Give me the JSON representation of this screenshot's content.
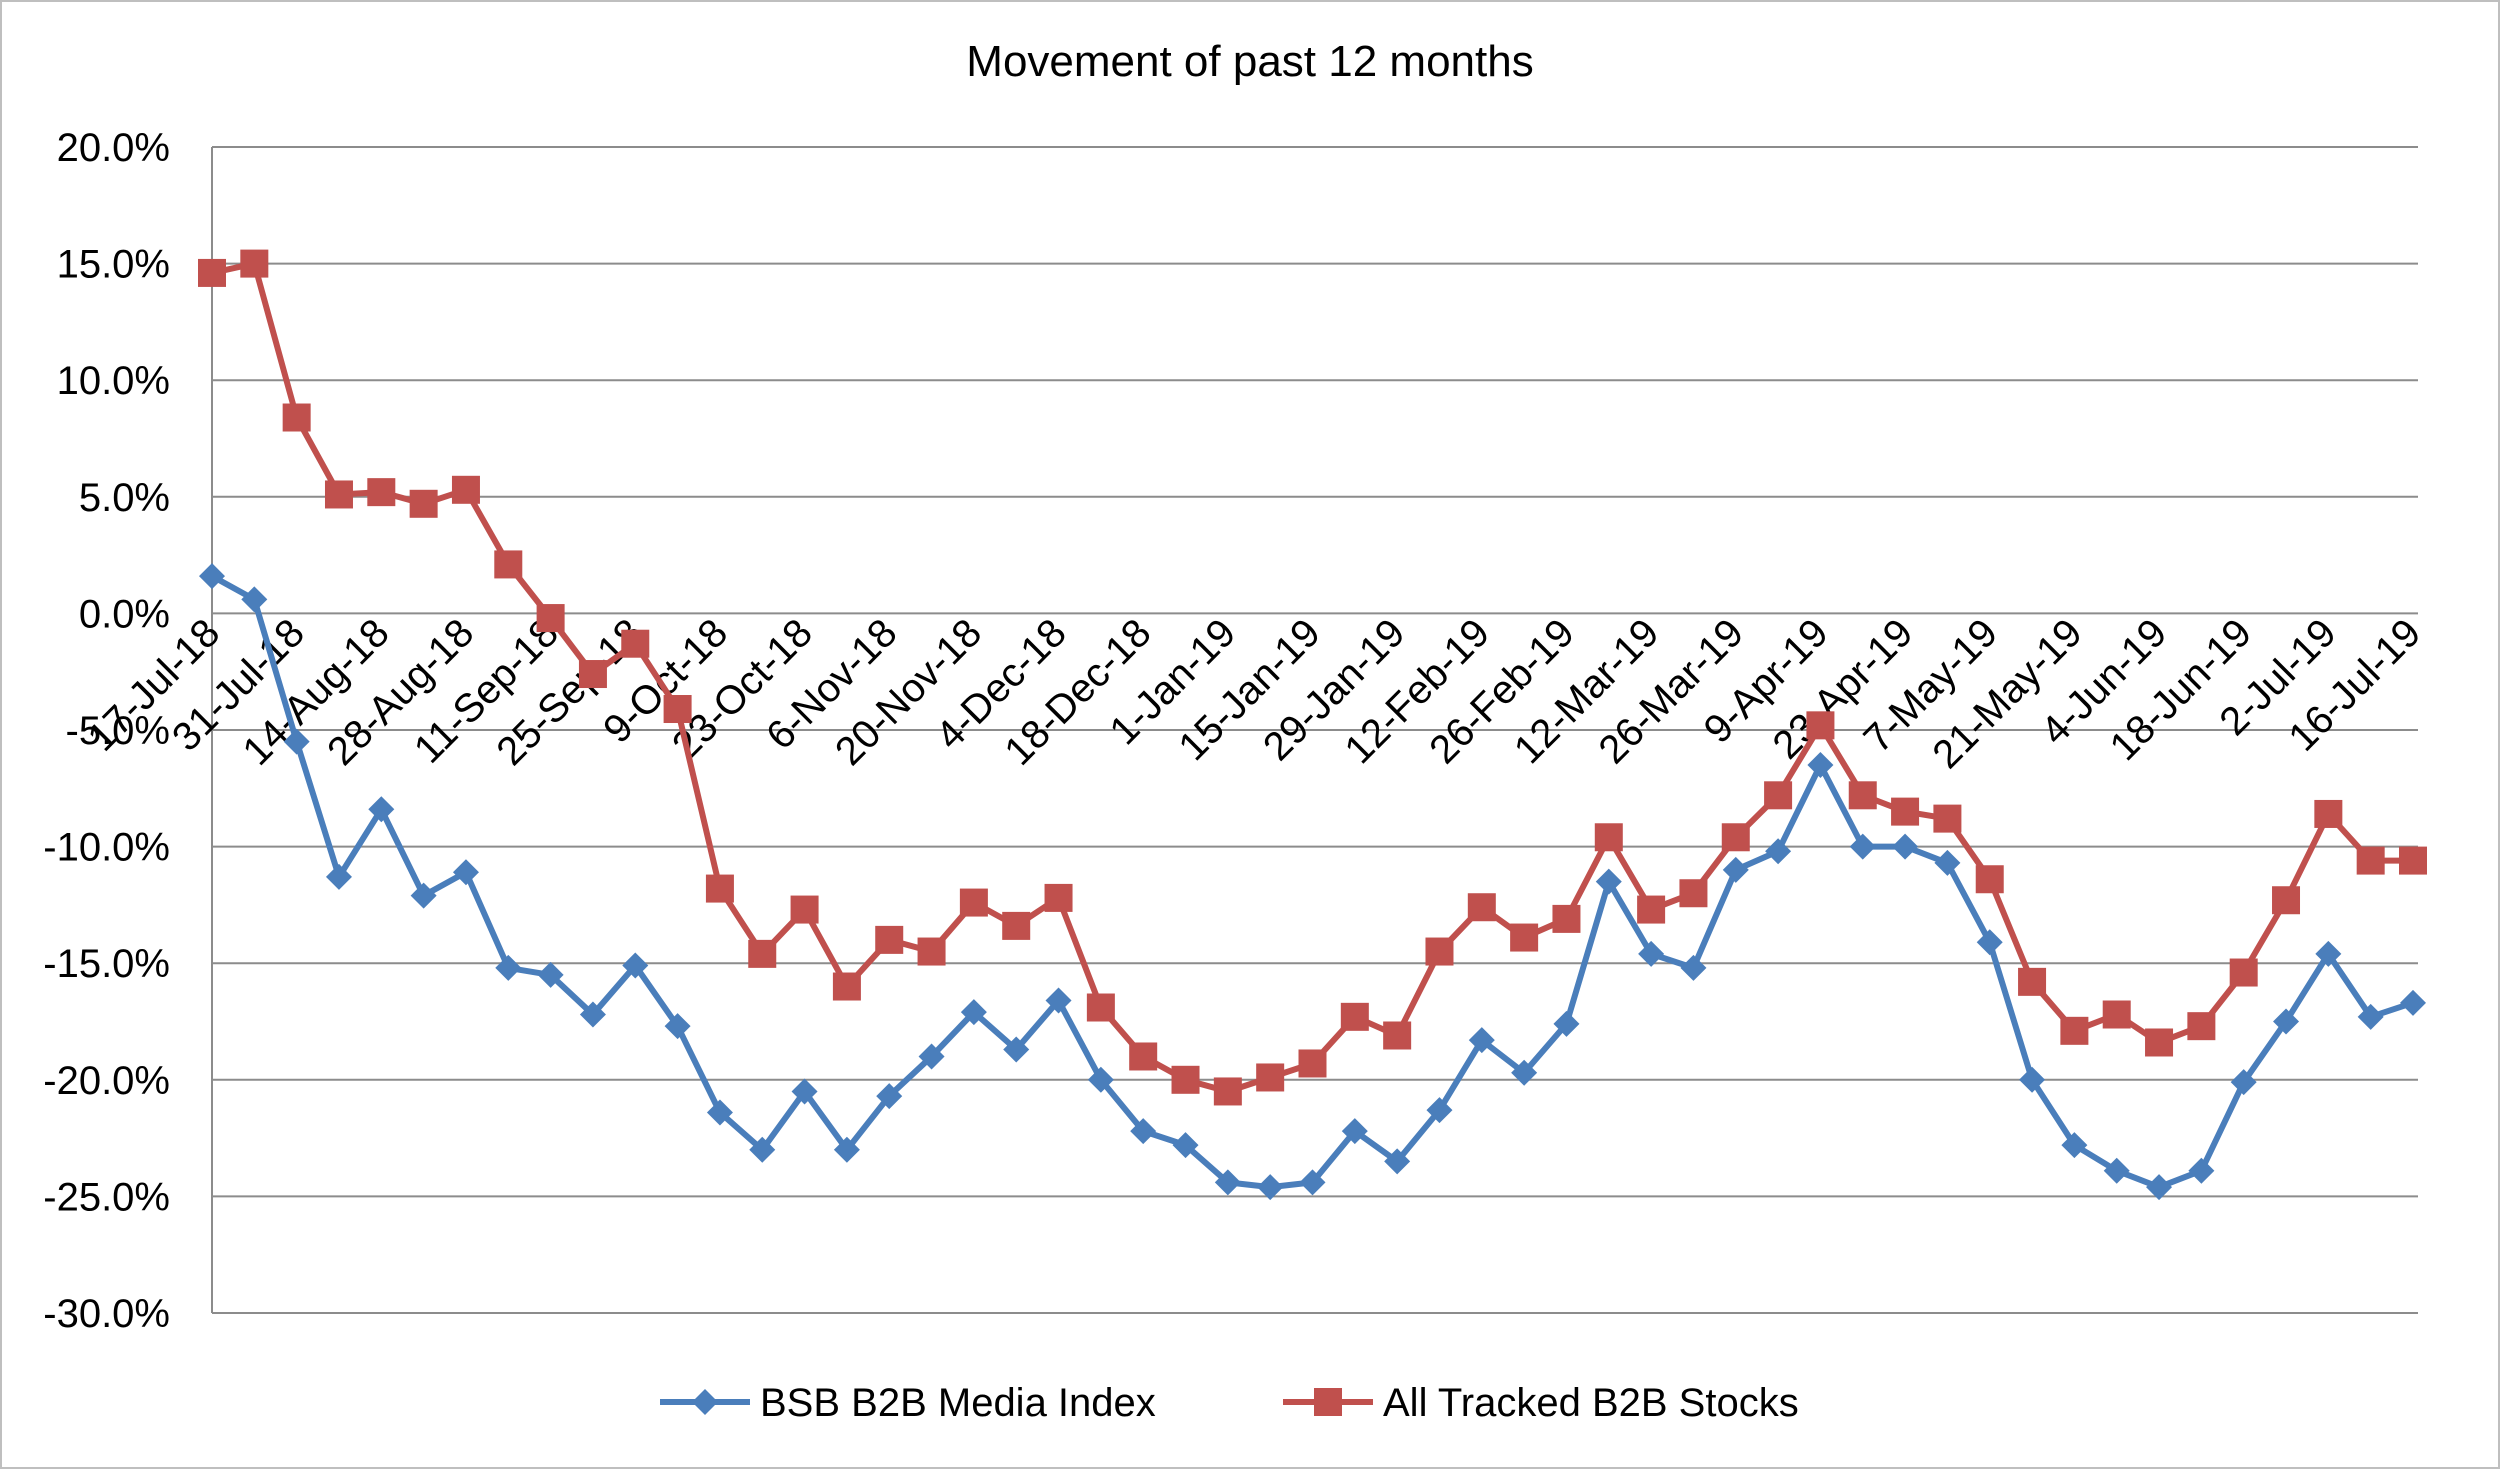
{
  "chart_data": {
    "type": "line",
    "title": "Movement of past 12 months",
    "xlabel": "",
    "ylabel": "",
    "ylim": [
      -0.3,
      0.2
    ],
    "ytick_values": [
      0.2,
      0.15,
      0.1,
      0.05,
      0.0,
      -0.05,
      -0.1,
      -0.15,
      -0.2,
      -0.25,
      -0.3
    ],
    "ytick_labels": [
      "20.0%",
      "15.0%",
      "10.0%",
      "5.0%",
      "0.0%",
      "-5.0%",
      "-10.0%",
      "-15.0%",
      "-20.0%",
      "-25.0%",
      "-30.0%"
    ],
    "x_tick_labels": [
      "17-Jul-18",
      "31-Jul-18",
      "14-Aug-18",
      "28-Aug-18",
      "11-Sep-18",
      "25-Sep-18",
      "9-Oct-18",
      "23-Oct-18",
      "6-Nov-18",
      "20-Nov-18",
      "4-Dec-18",
      "18-Dec-18",
      "1-Jan-19",
      "15-Jan-19",
      "29-Jan-19",
      "12-Feb-19",
      "26-Feb-19",
      "12-Mar-19",
      "26-Mar-19",
      "9-Apr-19",
      "23-Apr-19",
      "7-May-19",
      "21-May-19",
      "4-Jun-19",
      "18-Jun-19",
      "2-Jul-19",
      "16-Jul-19"
    ],
    "grid": true,
    "legend_position": "bottom",
    "series": [
      {
        "name": "BSB B2B Media Index",
        "color": "#4a7ebb",
        "marker": "diamond",
        "values": [
          0.016,
          0.006,
          -0.055,
          -0.113,
          -0.084,
          -0.121,
          -0.111,
          -0.152,
          -0.155,
          -0.172,
          -0.151,
          -0.177,
          -0.214,
          -0.23,
          -0.205,
          -0.23,
          -0.207,
          -0.19,
          -0.171,
          -0.187,
          -0.166,
          -0.2,
          -0.222,
          -0.228,
          -0.244,
          -0.246,
          -0.244,
          -0.222,
          -0.235,
          -0.213,
          -0.183,
          -0.197,
          -0.176,
          -0.115,
          -0.146,
          -0.152,
          -0.11,
          -0.102,
          -0.065,
          -0.1,
          -0.1,
          -0.107,
          -0.141,
          -0.2,
          -0.228,
          -0.239,
          -0.246,
          -0.239,
          -0.201,
          -0.175,
          -0.146,
          -0.173,
          -0.167
        ]
      },
      {
        "name": "All Tracked B2B Stocks",
        "color": "#c0504d",
        "marker": "square",
        "values": [
          0.146,
          0.15,
          0.084,
          0.051,
          0.052,
          0.047,
          0.053,
          0.021,
          -0.002,
          -0.026,
          -0.013,
          -0.041,
          -0.118,
          -0.146,
          -0.127,
          -0.16,
          -0.14,
          -0.145,
          -0.124,
          -0.134,
          -0.122,
          -0.169,
          -0.19,
          -0.2,
          -0.205,
          -0.199,
          -0.193,
          -0.173,
          -0.181,
          -0.145,
          -0.126,
          -0.139,
          -0.131,
          -0.096,
          -0.127,
          -0.12,
          -0.096,
          -0.078,
          -0.048,
          -0.078,
          -0.085,
          -0.088,
          -0.114,
          -0.158,
          -0.179,
          -0.172,
          -0.184,
          -0.177,
          -0.154,
          -0.123,
          -0.086,
          -0.106,
          -0.106
        ]
      }
    ]
  }
}
